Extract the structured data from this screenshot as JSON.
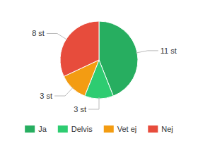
{
  "chart_data": {
    "type": "pie",
    "categories": [
      "Ja",
      "Delvis",
      "Vet ej",
      "Nej"
    ],
    "values": [
      11,
      3,
      3,
      8
    ],
    "value_labels": [
      "11 st",
      "3 st",
      "3 st",
      "8 st"
    ],
    "colors": [
      "#27ae60",
      "#2ecc71",
      "#f39c12",
      "#e74c3c"
    ],
    "data_labels": true,
    "legend": "bottom"
  }
}
